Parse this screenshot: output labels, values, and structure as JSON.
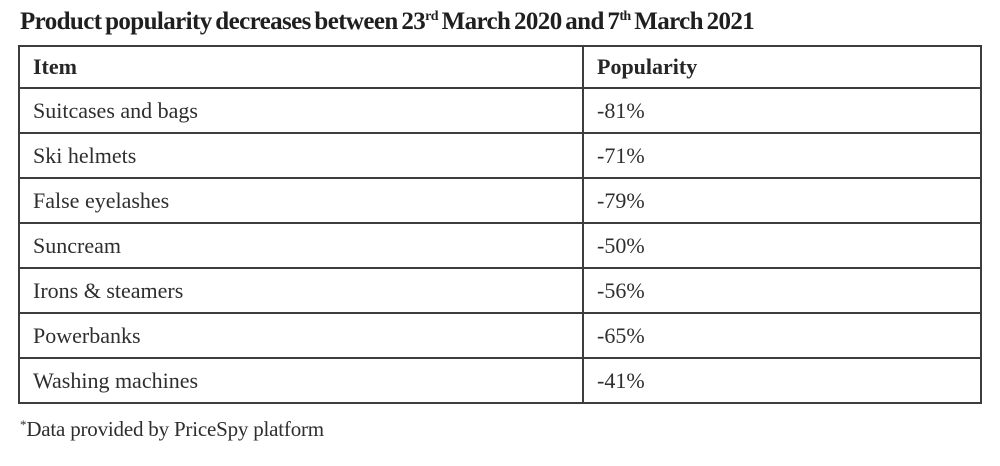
{
  "title": {
    "part1": "Product popularity decreases between 23",
    "sup1": "rd",
    "part2": " March 2020 and 7",
    "sup2": "th",
    "part3": " March 2021"
  },
  "table": {
    "headers": [
      "Item",
      "Popularity"
    ],
    "rows": [
      {
        "item": "Suitcases and bags",
        "popularity": "-81%"
      },
      {
        "item": "Ski helmets",
        "popularity": "-71%"
      },
      {
        "item": "False eyelashes",
        "popularity": "-79%"
      },
      {
        "item": "Suncream",
        "popularity": "-50%"
      },
      {
        "item": "Irons & steamers",
        "popularity": "-56%"
      },
      {
        "item": "Powerbanks",
        "popularity": "-65%"
      },
      {
        "item": "Washing machines",
        "popularity": "-41%"
      }
    ]
  },
  "footnote": {
    "marker": "*",
    "text": "Data provided by PriceSpy platform"
  },
  "colors": {
    "background": "#ffffff",
    "text": "#2e2e2e",
    "title_text": "#1f1f1f",
    "table_border": "#3d3d3d"
  },
  "chart_data": {
    "type": "table",
    "title": "Product popularity decreases between 23rd March 2020 and 7th March 2021",
    "columns": [
      "Item",
      "Popularity"
    ],
    "rows": [
      [
        "Suitcases and bags",
        "-81%"
      ],
      [
        "Ski helmets",
        "-71%"
      ],
      [
        "False eyelashes",
        "-79%"
      ],
      [
        "Suncream",
        "-50%"
      ],
      [
        "Irons & steamers",
        "-56%"
      ],
      [
        "Powerbanks",
        "-65%"
      ],
      [
        "Washing machines",
        "-41%"
      ]
    ],
    "values_numeric": [
      -81,
      -71,
      -79,
      -50,
      -56,
      -65,
      -41
    ],
    "footnote": "*Data provided by PriceSpy platform"
  }
}
